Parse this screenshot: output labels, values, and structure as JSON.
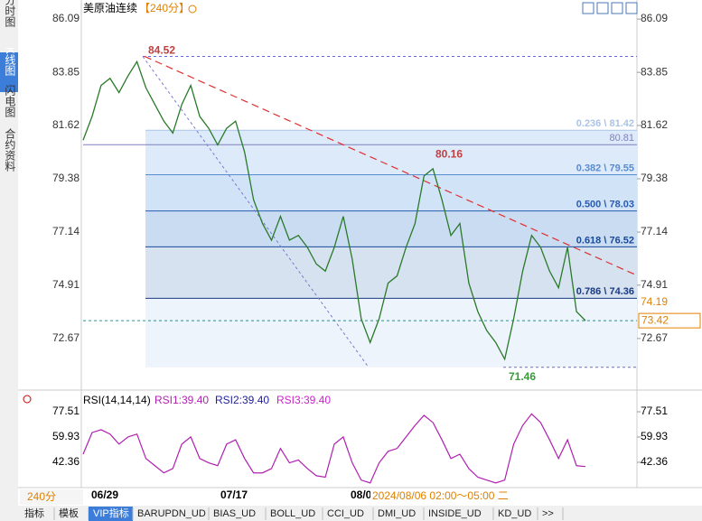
{
  "ui": {
    "title": "美原油连续",
    "period": "【240分】",
    "sidebar": [
      "分时图",
      "K线图",
      "闪电图",
      "合约资料"
    ],
    "period_button": "240分",
    "crosshair_time": "2024/08/06 02:00～05:00 二",
    "date_labels": [
      "06/29",
      "07/17",
      "08/0"
    ],
    "tabs": [
      "指标",
      "模板",
      "VIP指标",
      "BARUPDN_UD",
      "BIAS_UD",
      "BOLL_UD",
      "CCI_UD",
      "DMI_UD",
      "INSIDE_UD",
      "KD_UD",
      ">>"
    ]
  },
  "chart_data": [
    {
      "type": "line",
      "color": "#2a7a2a",
      "ylim": [
        70.58,
        86.51
      ],
      "yticks": [
        72.67,
        74.91,
        77.14,
        79.38,
        81.62,
        83.85,
        86.09
      ],
      "values": [
        81.0,
        82.0,
        83.3,
        83.6,
        83.0,
        83.7,
        84.3,
        83.2,
        82.5,
        81.8,
        81.3,
        82.5,
        83.3,
        82.0,
        81.5,
        80.8,
        81.5,
        81.8,
        80.5,
        78.5,
        77.5,
        76.8,
        77.8,
        76.8,
        77.0,
        76.5,
        75.8,
        75.5,
        76.5,
        77.8,
        76.0,
        73.5,
        72.5,
        73.5,
        75.0,
        75.3,
        76.5,
        77.5,
        79.5,
        79.8,
        78.5,
        77.0,
        77.5,
        75.0,
        73.8,
        73.0,
        72.5,
        71.8,
        73.5,
        75.5,
        77.0,
        76.5,
        75.5,
        74.8,
        76.5,
        73.8,
        73.42
      ],
      "levels": [
        {
          "value": 81.42,
          "label": "0.236 \\ 81.42"
        },
        {
          "value": 79.55,
          "label": "0.382 \\ 79.55"
        },
        {
          "value": 78.03,
          "label": "0.500 \\ 78.03"
        },
        {
          "value": 76.52,
          "label": "0.618 \\ 76.52"
        },
        {
          "value": 74.36,
          "label": "0.786 \\ 74.36"
        }
      ],
      "reference_line": 80.81,
      "annotations": [
        84.52,
        80.16,
        71.46
      ],
      "marker_price": 74.19,
      "last_price": 73.42
    },
    {
      "type": "line",
      "title": "RSI(14,14,14)",
      "ylim": [
        24.78,
        87.55
      ],
      "yticks": [
        42.36,
        59.93,
        77.51
      ],
      "series": [
        {
          "name": "RSI1:39.40",
          "color": "#b020b0",
          "values": [
            48,
            63,
            65,
            62,
            55,
            60,
            62,
            45,
            40,
            35,
            38,
            55,
            60,
            45,
            42,
            40,
            55,
            58,
            45,
            35,
            35,
            38,
            52,
            42,
            44,
            38,
            33,
            32,
            55,
            60,
            42,
            30,
            28,
            42,
            50,
            52,
            60,
            68,
            75,
            70,
            58,
            45,
            48,
            38,
            32,
            30,
            28,
            30,
            55,
            68,
            76,
            70,
            58,
            45,
            58,
            40,
            39.4
          ]
        },
        {
          "name": "RSI2:39.40",
          "color": "#2020a0"
        },
        {
          "name": "RSI3:39.40",
          "color": "#d020d0"
        }
      ]
    }
  ]
}
